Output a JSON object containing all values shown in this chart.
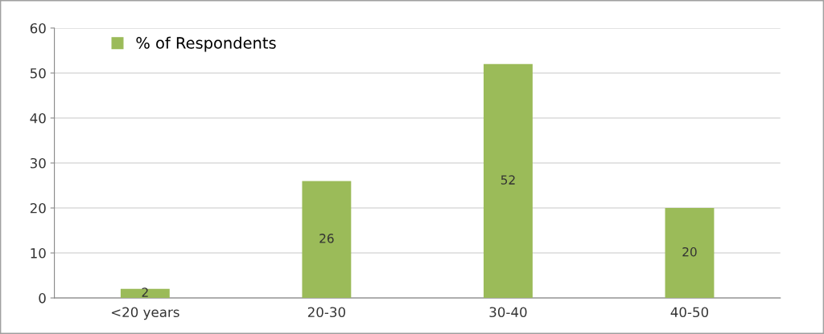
{
  "chart_data": {
    "type": "bar",
    "categories": [
      "<20 years",
      "20-30",
      "30-40",
      "40-50"
    ],
    "series": [
      {
        "name": "% of Respondents",
        "color": "#9bbb59",
        "values": [
          2,
          26,
          52,
          20
        ]
      }
    ],
    "ylim": [
      0,
      60
    ],
    "yticks": [
      0,
      10,
      20,
      30,
      40,
      50,
      60
    ],
    "grid": "y",
    "legend": "top left",
    "data_labels": true
  }
}
